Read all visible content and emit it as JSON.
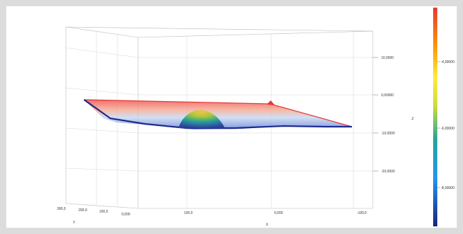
{
  "chart_data": {
    "type": "surface3d",
    "axes": {
      "x": {
        "label": "X",
        "ticks": [
          "100,0",
          "0,000",
          "-100,0"
        ]
      },
      "y": {
        "label": "Y",
        "ticks": [
          "300,0",
          "200,0",
          "100,0",
          "0,000"
        ]
      },
      "z": {
        "label": "Z",
        "ticks": [
          "10,0000",
          "0,00000",
          "-10,0000",
          "-20,0000"
        ],
        "range": [
          -20,
          10
        ]
      }
    },
    "colorbar": {
      "ticks": [
        "-4,00000",
        "-6,00000",
        "-8,00000"
      ],
      "colormap": [
        "#1a237e",
        "#2196f3",
        "#26a69a",
        "#cddc39",
        "#ffeb3b",
        "#ff9800",
        "#e53935"
      ]
    },
    "surface": {
      "description_free": true,
      "peak_colors": {
        "high": "#e53935",
        "low": "#1a237e"
      }
    }
  }
}
